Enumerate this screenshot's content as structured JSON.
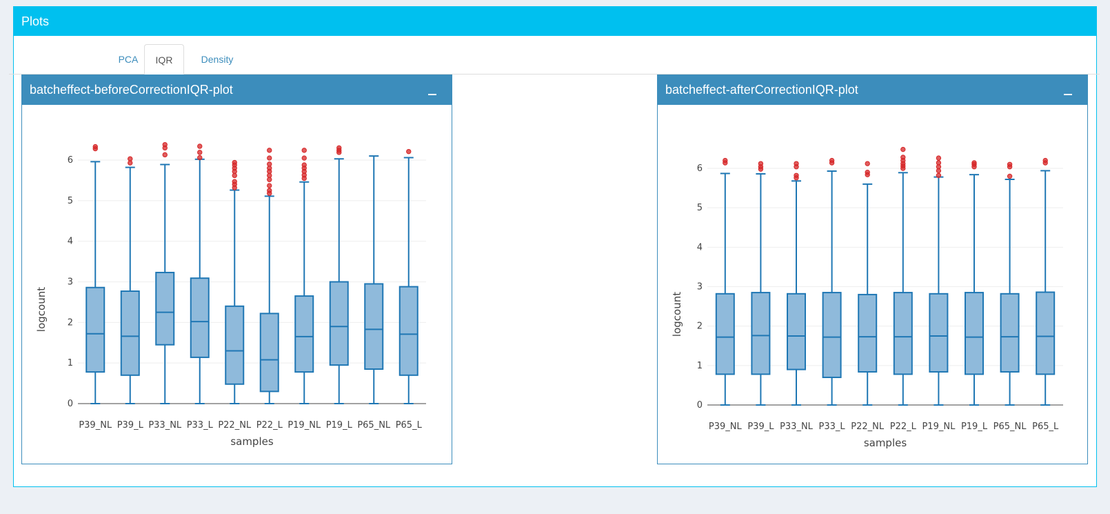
{
  "header": {
    "title": "Plots"
  },
  "tabs": [
    {
      "label": "PCA",
      "active": false
    },
    {
      "label": "IQR",
      "active": true
    },
    {
      "label": "Density",
      "active": false
    }
  ],
  "colors": {
    "header": "#00c0ef",
    "panel": "#3c8dbc",
    "box_fill": "#8fbadb",
    "box_line": "#1f77b4",
    "outlier": "#d62728"
  },
  "panels": [
    {
      "title": "batcheffect-beforeCorrectionIQR-plot",
      "collapse_icon": "minus-icon"
    },
    {
      "title": "batcheffect-afterCorrectionIQR-plot",
      "collapse_icon": "minus-icon"
    }
  ],
  "chart_data": [
    {
      "type": "box",
      "title": "",
      "xlabel": "samples",
      "ylabel": "logcount",
      "ylim": [
        0,
        6.6
      ],
      "yticks": [
        "0",
        "1",
        "2",
        "3",
        "4",
        "5",
        "6"
      ],
      "grid": true,
      "categories": [
        "P39_NL",
        "P39_L",
        "P33_NL",
        "P33_L",
        "P22_NL",
        "P22_L",
        "P19_NL",
        "P19_L",
        "P65_NL",
        "P65_L"
      ],
      "boxes": [
        {
          "min": 0,
          "q1": 0.78,
          "median": 1.72,
          "q3": 2.86,
          "max": 5.96,
          "outliers": [
            6.28,
            6.33
          ]
        },
        {
          "min": 0,
          "q1": 0.7,
          "median": 1.66,
          "q3": 2.77,
          "max": 5.82,
          "outliers": [
            5.93,
            6.03
          ]
        },
        {
          "min": 0,
          "q1": 1.45,
          "median": 2.25,
          "q3": 3.23,
          "max": 5.89,
          "outliers": [
            6.13,
            6.3,
            6.38
          ]
        },
        {
          "min": 0,
          "q1": 1.14,
          "median": 2.02,
          "q3": 3.09,
          "max": 6.02,
          "outliers": [
            6.06,
            6.19,
            6.34
          ]
        },
        {
          "min": 0,
          "q1": 0.48,
          "median": 1.3,
          "q3": 2.4,
          "max": 5.26,
          "outliers": [
            5.32,
            5.4,
            5.47,
            5.62,
            5.72,
            5.8,
            5.88,
            5.94
          ]
        },
        {
          "min": 0,
          "q1": 0.3,
          "median": 1.08,
          "q3": 2.22,
          "max": 5.11,
          "outliers": [
            5.18,
            5.25,
            5.37,
            5.52,
            5.62,
            5.72,
            5.8,
            5.9,
            6.05,
            6.24
          ]
        },
        {
          "min": 0,
          "q1": 0.78,
          "median": 1.65,
          "q3": 2.65,
          "max": 5.46,
          "outliers": [
            5.55,
            5.63,
            5.72,
            5.8,
            5.88,
            6.05,
            6.24
          ]
        },
        {
          "min": 0,
          "q1": 0.95,
          "median": 1.9,
          "q3": 3.0,
          "max": 6.03,
          "outliers": [
            6.19,
            6.24,
            6.3
          ]
        },
        {
          "min": 0,
          "q1": 0.85,
          "median": 1.83,
          "q3": 2.95,
          "max": 6.1,
          "outliers": []
        },
        {
          "min": 0,
          "q1": 0.7,
          "median": 1.71,
          "q3": 2.88,
          "max": 6.06,
          "outliers": [
            6.21
          ]
        }
      ]
    },
    {
      "type": "box",
      "title": "",
      "xlabel": "samples",
      "ylabel": "logcount",
      "ylim": [
        0,
        6.6
      ],
      "yticks": [
        "0",
        "1",
        "2",
        "3",
        "4",
        "5",
        "6"
      ],
      "grid": true,
      "categories": [
        "P39_NL",
        "P39_L",
        "P33_NL",
        "P33_L",
        "P22_NL",
        "P22_L",
        "P19_NL",
        "P19_L",
        "P65_NL",
        "P65_L"
      ],
      "boxes": [
        {
          "min": 0,
          "q1": 0.78,
          "median": 1.72,
          "q3": 2.82,
          "max": 5.87,
          "outliers": [
            6.14,
            6.2
          ]
        },
        {
          "min": 0,
          "q1": 0.78,
          "median": 1.76,
          "q3": 2.85,
          "max": 5.86,
          "outliers": [
            5.98,
            6.04,
            6.12
          ]
        },
        {
          "min": 0,
          "q1": 0.9,
          "median": 1.75,
          "q3": 2.82,
          "max": 5.68,
          "outliers": [
            5.76,
            5.82,
            6.04,
            6.12
          ]
        },
        {
          "min": 0,
          "q1": 0.7,
          "median": 1.72,
          "q3": 2.85,
          "max": 5.93,
          "outliers": [
            6.14,
            6.2
          ]
        },
        {
          "min": 0,
          "q1": 0.84,
          "median": 1.73,
          "q3": 2.8,
          "max": 5.6,
          "outliers": [
            5.84,
            5.9,
            6.12
          ]
        },
        {
          "min": 0,
          "q1": 0.78,
          "median": 1.73,
          "q3": 2.85,
          "max": 5.89,
          "outliers": [
            6.0,
            6.06,
            6.12,
            6.2,
            6.28,
            6.48
          ]
        },
        {
          "min": 0,
          "q1": 0.84,
          "median": 1.75,
          "q3": 2.82,
          "max": 5.78,
          "outliers": [
            5.82,
            5.94,
            6.04,
            6.14,
            6.26
          ]
        },
        {
          "min": 0,
          "q1": 0.78,
          "median": 1.72,
          "q3": 2.85,
          "max": 5.84,
          "outliers": [
            6.04,
            6.1,
            6.14
          ]
        },
        {
          "min": 0,
          "q1": 0.84,
          "median": 1.73,
          "q3": 2.82,
          "max": 5.72,
          "outliers": [
            5.8,
            6.04,
            6.1
          ]
        },
        {
          "min": 0,
          "q1": 0.78,
          "median": 1.74,
          "q3": 2.86,
          "max": 5.94,
          "outliers": [
            6.14,
            6.2
          ]
        }
      ]
    }
  ]
}
